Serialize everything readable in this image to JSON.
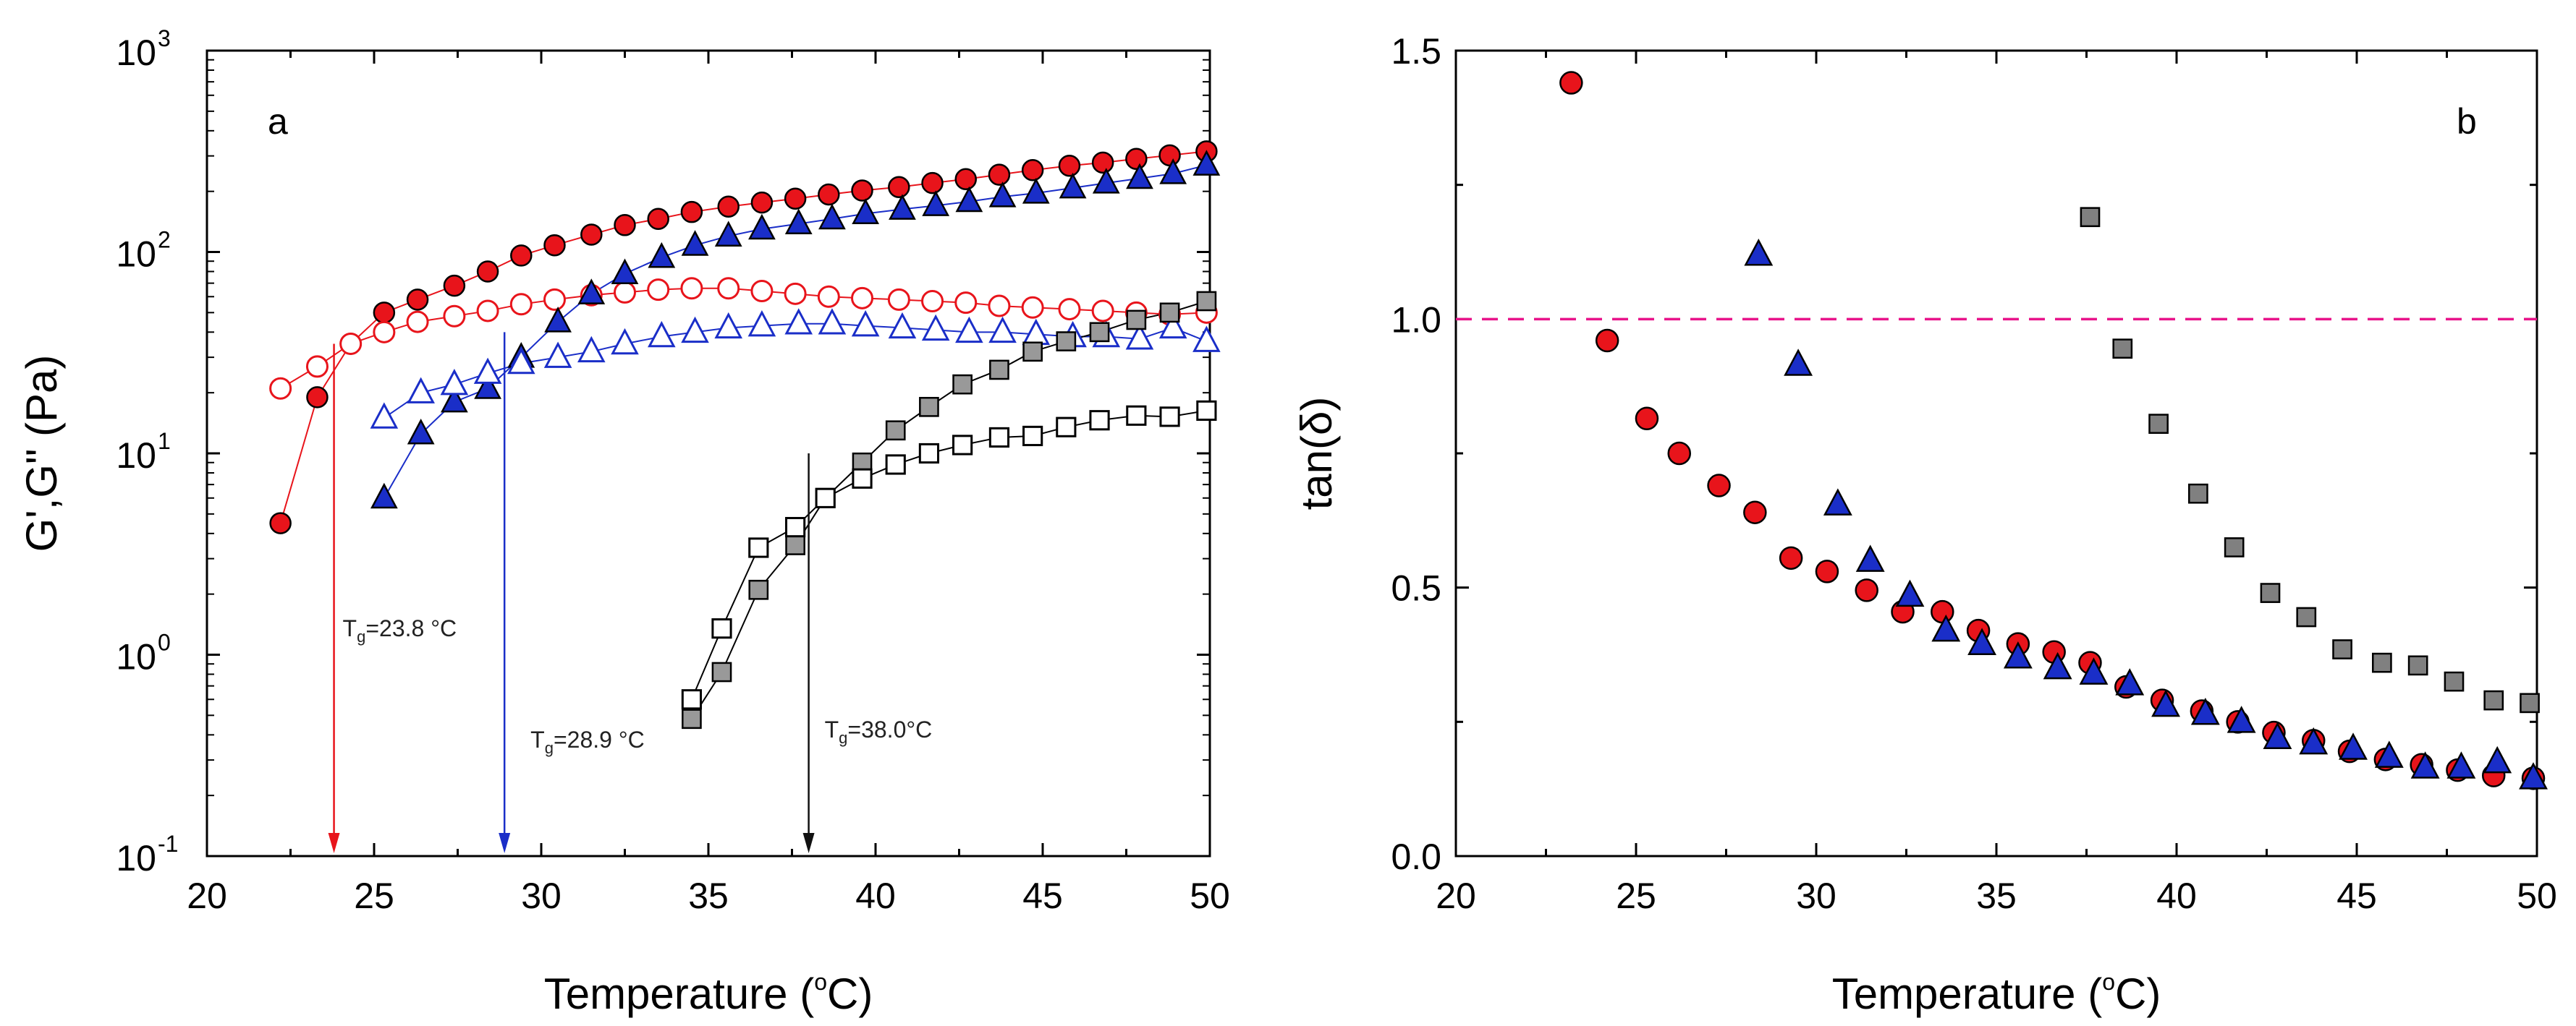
{
  "chart_data": [
    {
      "panel": "a",
      "type": "scatter",
      "yscale": "log",
      "xlabel": "Temperature (°C)",
      "ylabel": "G',G\" (Pa)",
      "xlim": [
        20,
        50
      ],
      "ylim": [
        0.1,
        1000
      ],
      "xticks": [
        20,
        25,
        30,
        35,
        40,
        45,
        50
      ],
      "yticks": [
        {
          "value": 0.1,
          "base": "10",
          "exp": "-1"
        },
        {
          "value": 1,
          "base": "10",
          "exp": "0"
        },
        {
          "value": 10,
          "base": "10",
          "exp": "1"
        },
        {
          "value": 100,
          "base": "10",
          "exp": "2"
        },
        {
          "value": 1000,
          "base": "10",
          "exp": "3"
        }
      ],
      "series": [
        {
          "name": "G' red",
          "marker": "circle",
          "filled": true,
          "fill": "#e8141b",
          "stroke": "#000000",
          "line": "#e8141b",
          "x": [
            22.2,
            23.3,
            24.3,
            25.3,
            26.3,
            27.4,
            28.4,
            29.4,
            30.4,
            31.5,
            32.5,
            33.5,
            34.5,
            35.6,
            36.6,
            37.6,
            38.6,
            39.6,
            40.7,
            41.7,
            42.7,
            43.7,
            44.7,
            45.8,
            46.8,
            47.8,
            48.8,
            49.9
          ],
          "y": [
            4.5,
            19,
            35,
            50,
            58,
            68,
            80,
            96,
            108,
            122,
            136,
            146,
            158,
            168,
            176,
            184,
            193,
            202,
            210,
            220,
            230,
            242,
            255,
            268,
            278,
            290,
            302,
            316
          ]
        },
        {
          "name": "G\" red",
          "marker": "circle",
          "filled": false,
          "fill": "none",
          "stroke": "#e8141b",
          "line": "#e8141b",
          "x": [
            22.2,
            23.3,
            24.3,
            25.3,
            26.3,
            27.4,
            28.4,
            29.4,
            30.4,
            31.5,
            32.5,
            33.5,
            34.5,
            35.6,
            36.6,
            37.6,
            38.6,
            39.6,
            40.7,
            41.7,
            42.7,
            43.7,
            44.7,
            45.8,
            46.8,
            47.8,
            48.8,
            49.9
          ],
          "y": [
            21,
            27,
            35,
            40,
            45,
            48,
            51,
            55,
            58,
            61,
            63,
            65,
            66,
            66,
            64,
            62,
            60,
            59,
            58,
            57,
            56,
            54,
            53,
            52,
            51,
            50,
            49,
            50
          ]
        },
        {
          "name": "G' blue",
          "marker": "triangle",
          "filled": true,
          "fill": "#1a2ec8",
          "stroke": "#000000",
          "line": "#1a2ec8",
          "x": [
            25.3,
            26.4,
            27.4,
            28.4,
            29.4,
            30.5,
            31.5,
            32.5,
            33.6,
            34.6,
            35.6,
            36.6,
            37.7,
            38.7,
            39.7,
            40.8,
            41.8,
            42.8,
            43.8,
            44.8,
            45.9,
            46.9,
            47.9,
            48.9,
            49.9
          ],
          "y": [
            6,
            12.5,
            18,
            21,
            30,
            45,
            62,
            78,
            94,
            108,
            120,
            130,
            138,
            146,
            155,
            163,
            170,
            178,
            188,
            196,
            208,
            220,
            232,
            245,
            270
          ]
        },
        {
          "name": "G\" blue",
          "marker": "triangle",
          "filled": false,
          "fill": "none",
          "stroke": "#1a2ec8",
          "line": "#1a2ec8",
          "x": [
            25.3,
            26.4,
            27.4,
            28.4,
            29.4,
            30.5,
            31.5,
            32.5,
            33.6,
            34.6,
            35.6,
            36.6,
            37.7,
            38.7,
            39.7,
            40.8,
            41.8,
            42.8,
            43.8,
            44.8,
            45.9,
            46.9,
            47.9,
            48.9,
            49.9
          ],
          "y": [
            15,
            20,
            22,
            25,
            28,
            30,
            32,
            35,
            38,
            40,
            42,
            43,
            44,
            44,
            43,
            42,
            41,
            40,
            40,
            39,
            38,
            38,
            37,
            42,
            36
          ]
        },
        {
          "name": "G' grey",
          "marker": "square",
          "filled": true,
          "fill": "#999999",
          "stroke": "#000000",
          "line": "#000000",
          "x": [
            34.5,
            35.4,
            36.5,
            37.6,
            38.5,
            39.6,
            40.6,
            41.6,
            42.6,
            43.7,
            44.7,
            45.7,
            46.7,
            47.8,
            48.8,
            49.9
          ],
          "y": [
            0.48,
            0.82,
            2.1,
            3.5,
            6,
            9,
            13,
            17,
            22,
            26,
            32,
            36,
            40,
            46,
            50,
            57
          ]
        },
        {
          "name": "G\" grey",
          "marker": "square",
          "filled": false,
          "fill": "none",
          "stroke": "#000000",
          "line": "#000000",
          "x": [
            34.5,
            35.4,
            36.5,
            37.6,
            38.5,
            39.6,
            40.6,
            41.6,
            42.6,
            43.7,
            44.7,
            45.7,
            46.7,
            47.8,
            48.8,
            49.9
          ],
          "y": [
            0.6,
            1.35,
            3.4,
            4.3,
            6,
            7.5,
            8.8,
            10,
            11,
            12,
            12.2,
            13.5,
            14.6,
            15.4,
            15.2,
            16.3
          ]
        }
      ],
      "markers": [
        {
          "x": 23.8,
          "color": "#e8141b",
          "top": 35,
          "label": "T",
          "sub": "g",
          "value": "=23.8 °C"
        },
        {
          "x": 28.9,
          "color": "#1a2ec8",
          "top": 40,
          "label": "T",
          "sub": "g",
          "value": "=28.9 °C"
        },
        {
          "x": 38.0,
          "color": "#111111",
          "top": 10,
          "label": "T",
          "sub": "g",
          "value": "=38.0°C"
        }
      ]
    },
    {
      "panel": "b",
      "type": "scatter",
      "xlabel": "Temperature (°C)",
      "ylabel": "tan(δ)",
      "xlim": [
        20,
        50
      ],
      "ylim": [
        0,
        1.5
      ],
      "xticks": [
        20,
        25,
        30,
        35,
        40,
        45,
        50
      ],
      "yticks": [
        "0.0",
        "0.5",
        "1.0",
        "1.5"
      ],
      "reference_line": {
        "y": 1.0,
        "color": "#e8148a",
        "style": "dashed"
      },
      "series": [
        {
          "name": "tan red",
          "marker": "circle",
          "fill": "#e8141b",
          "stroke": "#000000",
          "x": [
            23.2,
            24.2,
            25.3,
            26.2,
            27.3,
            28.3,
            29.3,
            30.3,
            31.4,
            32.4,
            33.5,
            34.5,
            35.6,
            36.6,
            37.6,
            38.6,
            39.6,
            40.7,
            41.7,
            42.7,
            43.8,
            44.8,
            45.8,
            46.8,
            47.8,
            48.8,
            49.9
          ],
          "y": [
            1.44,
            0.96,
            0.815,
            0.75,
            0.69,
            0.64,
            0.555,
            0.53,
            0.495,
            0.455,
            0.455,
            0.42,
            0.395,
            0.38,
            0.36,
            0.315,
            0.29,
            0.27,
            0.25,
            0.23,
            0.215,
            0.195,
            0.18,
            0.17,
            0.16,
            0.15,
            0.145
          ]
        },
        {
          "name": "tan blue",
          "marker": "triangle",
          "fill": "#1a2ec8",
          "stroke": "#000000",
          "x": [
            28.4,
            29.5,
            30.6,
            31.5,
            32.6,
            33.6,
            34.6,
            35.6,
            36.7,
            37.7,
            38.7,
            39.7,
            40.8,
            41.8,
            42.8,
            43.8,
            44.9,
            45.9,
            46.9,
            47.9,
            48.9,
            49.9
          ],
          "y": [
            1.12,
            0.915,
            0.655,
            0.55,
            0.485,
            0.42,
            0.395,
            0.37,
            0.35,
            0.34,
            0.32,
            0.28,
            0.265,
            0.25,
            0.22,
            0.21,
            0.2,
            0.185,
            0.165,
            0.165,
            0.175,
            0.145
          ]
        },
        {
          "name": "tan grey",
          "marker": "square",
          "fill": "#808080",
          "stroke": "#000000",
          "x": [
            37.6,
            38.5,
            39.5,
            40.6,
            41.6,
            42.6,
            43.6,
            44.6,
            45.7,
            46.7,
            47.7,
            48.8,
            49.8
          ],
          "y": [
            1.19,
            0.945,
            0.805,
            0.675,
            0.575,
            0.49,
            0.445,
            0.385,
            0.36,
            0.355,
            0.325,
            0.29,
            0.285
          ]
        }
      ]
    }
  ],
  "panel_labels": {
    "a": "a",
    "b": "b"
  },
  "axis_text": {
    "a_xlabel_main": "Temperature (",
    "a_xlabel_deg": "o",
    "a_xlabel_end": "C)",
    "a_ylabel": "G',G\" (Pa)",
    "b_xlabel_main": "Temperature (",
    "b_xlabel_deg": "o",
    "b_xlabel_end": "C)",
    "b_ylabel": "tan(δ)"
  }
}
